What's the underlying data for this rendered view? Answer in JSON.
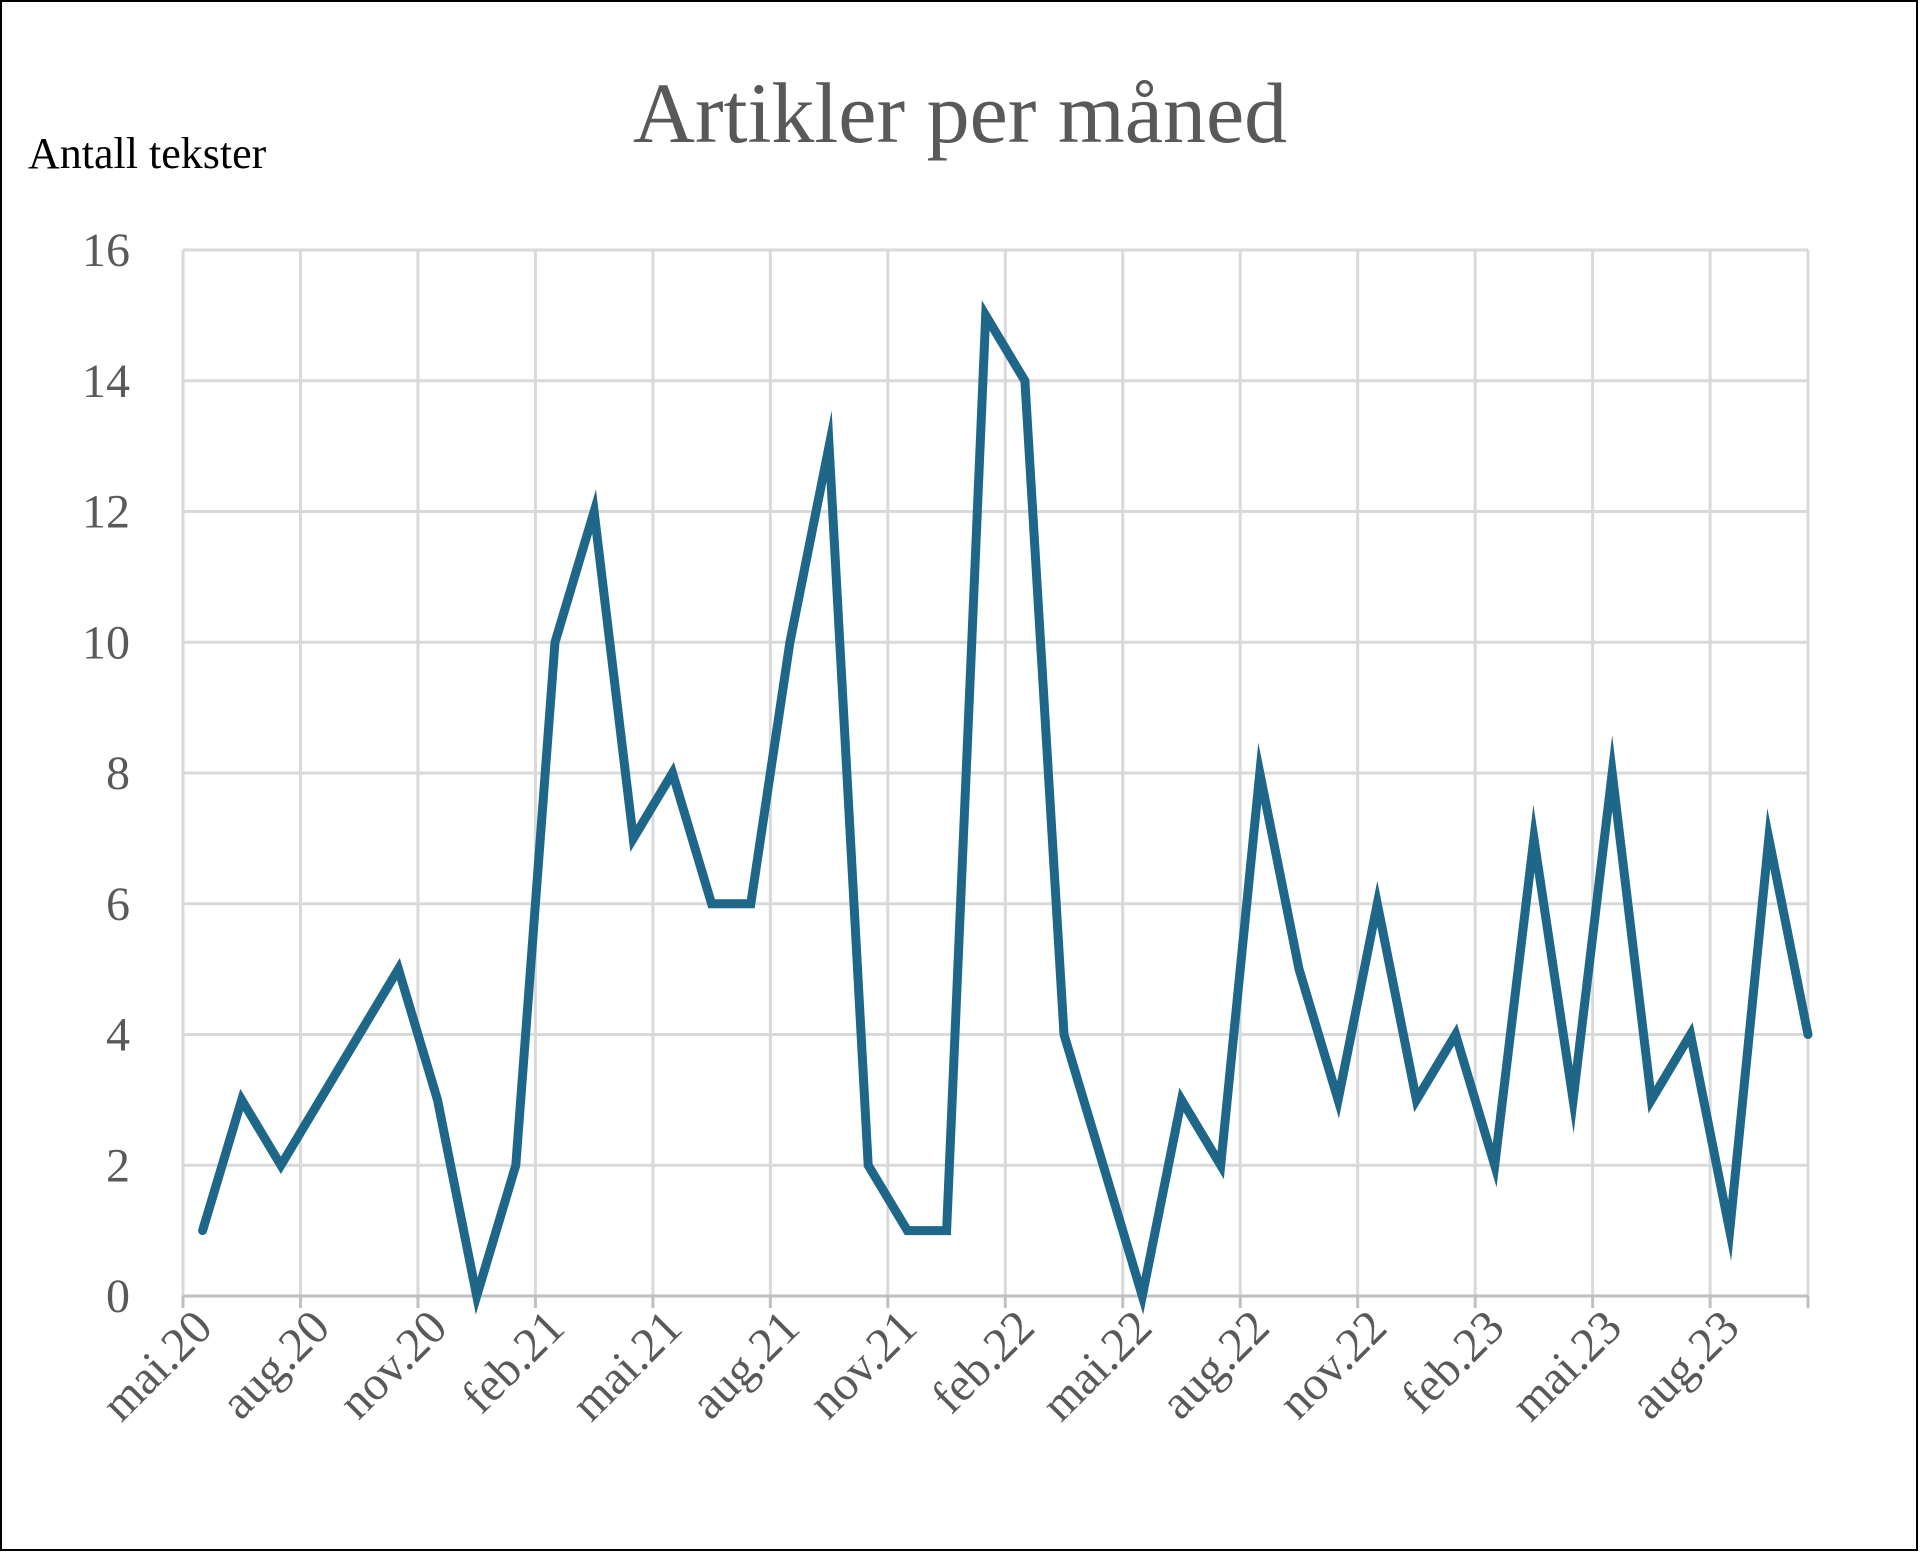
{
  "chart_data": {
    "type": "line",
    "title": "Artikler per måned",
    "ylabel": "Antall tekster",
    "xlabel": "",
    "ylim": [
      0,
      16
    ],
    "yticks": [
      "0",
      "2",
      "4",
      "6",
      "8",
      "10",
      "12",
      "14",
      "16"
    ],
    "xticks": [
      "mai.20",
      "aug.20",
      "nov.20",
      "feb.21",
      "mai.21",
      "aug.21",
      "nov.21",
      "feb.22",
      "mai.22",
      "aug.22",
      "nov.22",
      "feb.23",
      "mai.23",
      "aug.23"
    ],
    "grid": true,
    "legend": "none",
    "series": [
      {
        "color": "#1f6788",
        "x": [
          "mai.20",
          "jun.20",
          "jul.20",
          "aug.20",
          "sep.20",
          "okt.20",
          "nov.20",
          "des.20",
          "jan.21",
          "feb.21",
          "mar.21",
          "apr.21",
          "mai.21",
          "jun.21",
          "jul.21",
          "aug.21",
          "sep.21",
          "okt.21",
          "nov.21",
          "des.21",
          "jan.22",
          "feb.22",
          "mar.22",
          "apr.22",
          "mai.22",
          "jun.22",
          "jul.22",
          "aug.22",
          "sep.22",
          "okt.22",
          "nov.22",
          "des.22",
          "jan.23",
          "feb.23",
          "mar.23",
          "apr.23",
          "mai.23",
          "jun.23",
          "jul.23",
          "aug.23",
          "sep.23",
          "okt.23"
        ],
        "values": [
          1,
          3,
          2,
          3,
          4,
          5,
          3,
          0,
          2,
          10,
          12,
          7,
          8,
          6,
          6,
          10,
          13,
          2,
          1,
          1,
          15,
          14,
          4,
          2,
          0,
          3,
          2,
          8,
          5,
          3,
          6,
          3,
          4,
          2,
          7,
          3,
          8,
          3,
          4,
          1,
          7,
          4
        ]
      }
    ]
  }
}
